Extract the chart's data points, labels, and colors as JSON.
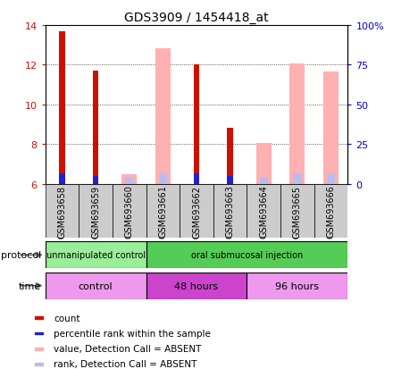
{
  "title": "GDS3909 / 1454418_at",
  "samples": [
    "GSM693658",
    "GSM693659",
    "GSM693660",
    "GSM693661",
    "GSM693662",
    "GSM693663",
    "GSM693664",
    "GSM693665",
    "GSM693666"
  ],
  "count_values": [
    13.7,
    11.7,
    null,
    null,
    12.0,
    8.85,
    null,
    null,
    null
  ],
  "rank_values": [
    6.55,
    6.4,
    null,
    null,
    6.55,
    6.4,
    null,
    null,
    null
  ],
  "absent_count_values": [
    null,
    null,
    6.5,
    12.85,
    null,
    null,
    8.05,
    12.05,
    11.65
  ],
  "absent_rank_values": [
    null,
    null,
    6.3,
    6.55,
    null,
    null,
    6.35,
    6.55,
    6.55
  ],
  "ylim": [
    6,
    14
  ],
  "yticks": [
    6,
    8,
    10,
    12,
    14
  ],
  "y2ticks_vals": [
    0,
    25,
    50,
    75,
    100
  ],
  "y2ticks_labels": [
    "0",
    "25",
    "50",
    "75",
    "100%"
  ],
  "y2lim": [
    0,
    100
  ],
  "protocol_groups": [
    {
      "label": "unmanipulated control",
      "start": 0,
      "end": 3,
      "color": "#99EE99"
    },
    {
      "label": "oral submucosal injection",
      "start": 3,
      "end": 9,
      "color": "#55CC55"
    }
  ],
  "time_groups": [
    {
      "label": "control",
      "start": 0,
      "end": 3,
      "color": "#EE99EE"
    },
    {
      "label": "48 hours",
      "start": 3,
      "end": 6,
      "color": "#CC44CC"
    },
    {
      "label": "96 hours",
      "start": 6,
      "end": 9,
      "color": "#EE99EE"
    }
  ],
  "color_count": "#CC1100",
  "color_rank": "#2222CC",
  "color_absent_count": "#FFB0B0",
  "color_absent_rank": "#BBBBEE",
  "legend_items": [
    {
      "label": "count",
      "color": "#CC1100"
    },
    {
      "label": "percentile rank within the sample",
      "color": "#2222CC"
    },
    {
      "label": "value, Detection Call = ABSENT",
      "color": "#FFB0B0"
    },
    {
      "label": "rank, Detection Call = ABSENT",
      "color": "#BBBBEE"
    }
  ],
  "label_color_left": "#CC1100",
  "label_color_right": "#0000CC",
  "sample_bg_color": "#CCCCCC"
}
